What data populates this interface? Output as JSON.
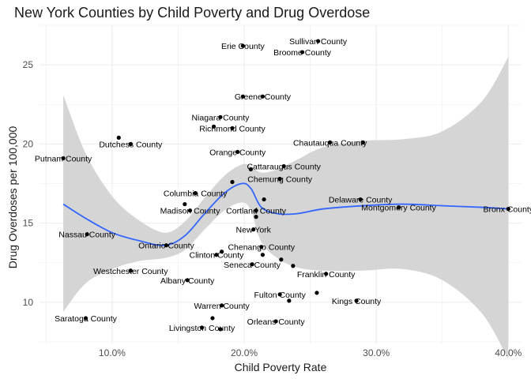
{
  "chart_data": {
    "type": "scatter",
    "title": "New York Counties by Child Poverty and Drug Overdose",
    "xlabel": "Child Poverty Rate",
    "ylabel": "Drug Overdoses per 100,000",
    "xlim": [
      0.045,
      0.41
    ],
    "ylim": [
      7.4,
      27.5
    ],
    "x_ticks": [
      0.1,
      0.2,
      0.3,
      0.4
    ],
    "x_tick_labels": [
      "10.0%",
      "20.0%",
      "30.0%",
      "40.0%"
    ],
    "y_ticks": [
      10,
      15,
      20,
      25
    ],
    "y_tick_labels": [
      "10",
      "15",
      "20",
      "25"
    ],
    "grid": true,
    "colors": {
      "point": "#000000",
      "smooth": "#3366ff",
      "ribbon": "#d3d3d3",
      "grid": "#ebebeb"
    },
    "points": [
      {
        "label": "Erie County",
        "x": 0.199,
        "y": 26.2
      },
      {
        "label": "Sullivan County",
        "x": 0.256,
        "y": 26.5
      },
      {
        "label": "Broome County",
        "x": 0.244,
        "y": 25.8
      },
      {
        "label": "Greene County",
        "x": 0.214,
        "y": 23.0
      },
      {
        "label": "",
        "x": 0.199,
        "y": 23.0
      },
      {
        "label": "Niagara County",
        "x": 0.182,
        "y": 21.7
      },
      {
        "label": "Richmond County",
        "x": 0.191,
        "y": 21.0
      },
      {
        "label": "",
        "x": 0.177,
        "y": 21.1
      },
      {
        "label": "Dutchess County",
        "x": 0.114,
        "y": 20.0
      },
      {
        "label": "",
        "x": 0.105,
        "y": 20.4
      },
      {
        "label": "Chautauqua County",
        "x": 0.265,
        "y": 20.1
      },
      {
        "label": "",
        "x": 0.29,
        "y": 20.1
      },
      {
        "label": "Putnam County",
        "x": 0.063,
        "y": 19.1
      },
      {
        "label": "Orange County",
        "x": 0.195,
        "y": 19.5
      },
      {
        "label": "Cattaraugus County",
        "x": 0.23,
        "y": 18.6
      },
      {
        "label": "",
        "x": 0.205,
        "y": 18.4
      },
      {
        "label": "Chemung County",
        "x": 0.227,
        "y": 17.8
      },
      {
        "label": "",
        "x": 0.191,
        "y": 17.6
      },
      {
        "label": "Columbia County",
        "x": 0.163,
        "y": 16.9
      },
      {
        "label": "",
        "x": 0.215,
        "y": 16.5
      },
      {
        "label": "Delaware County",
        "x": 0.288,
        "y": 16.5
      },
      {
        "label": "Montgomery County",
        "x": 0.317,
        "y": 16.0
      },
      {
        "label": "Bronx County",
        "x": 0.4,
        "y": 15.9
      },
      {
        "label": "Madison County",
        "x": 0.159,
        "y": 15.8
      },
      {
        "label": "",
        "x": 0.155,
        "y": 16.2
      },
      {
        "label": "Cortland County",
        "x": 0.209,
        "y": 15.8
      },
      {
        "label": "",
        "x": 0.209,
        "y": 15.4
      },
      {
        "label": "New York",
        "x": 0.207,
        "y": 14.6
      },
      {
        "label": "Nassau County",
        "x": 0.081,
        "y": 14.3
      },
      {
        "label": "Ontario County",
        "x": 0.141,
        "y": 13.6
      },
      {
        "label": "Chenango County",
        "x": 0.213,
        "y": 13.5
      },
      {
        "label": "Clinton County",
        "x": 0.179,
        "y": 13.0
      },
      {
        "label": "",
        "x": 0.183,
        "y": 13.2
      },
      {
        "label": "",
        "x": 0.214,
        "y": 13.0
      },
      {
        "label": "Seneca County",
        "x": 0.206,
        "y": 12.4
      },
      {
        "label": "",
        "x": 0.228,
        "y": 12.7
      },
      {
        "label": "",
        "x": 0.237,
        "y": 12.3
      },
      {
        "label": "Westchester County",
        "x": 0.114,
        "y": 12.0
      },
      {
        "label": "Franklin County",
        "x": 0.262,
        "y": 11.8
      },
      {
        "label": "Albany County",
        "x": 0.157,
        "y": 11.4
      },
      {
        "label": "Fulton County",
        "x": 0.227,
        "y": 10.5
      },
      {
        "label": "",
        "x": 0.255,
        "y": 10.6
      },
      {
        "label": "",
        "x": 0.234,
        "y": 10.1
      },
      {
        "label": "Kings County",
        "x": 0.285,
        "y": 10.1
      },
      {
        "label": "Warren County",
        "x": 0.183,
        "y": 9.8
      },
      {
        "label": "Saratoga County",
        "x": 0.08,
        "y": 9.0
      },
      {
        "label": "",
        "x": 0.176,
        "y": 9.0
      },
      {
        "label": "Orleans County",
        "x": 0.224,
        "y": 8.8
      },
      {
        "label": "Livingston County",
        "x": 0.168,
        "y": 8.4
      },
      {
        "label": "",
        "x": 0.182,
        "y": 8.3
      }
    ],
    "smooth": {
      "x": [
        0.063,
        0.08,
        0.1,
        0.12,
        0.14,
        0.155,
        0.17,
        0.185,
        0.198,
        0.205,
        0.213,
        0.225,
        0.24,
        0.26,
        0.29,
        0.32,
        0.35,
        0.38,
        0.4
      ],
      "y": [
        16.2,
        15.3,
        14.4,
        13.9,
        13.6,
        14.2,
        15.6,
        16.9,
        17.5,
        17.2,
        16.0,
        15.6,
        15.6,
        15.9,
        16.1,
        16.2,
        16.1,
        16.0,
        15.9
      ],
      "upper": [
        23.1,
        19.4,
        16.7,
        15.2,
        14.4,
        15.1,
        16.6,
        18.0,
        18.7,
        18.6,
        18.2,
        18.4,
        19.0,
        19.8,
        20.2,
        20.3,
        20.8,
        22.7,
        25.5
      ],
      "lower": [
        9.4,
        11.2,
        12.1,
        12.6,
        12.8,
        13.3,
        14.6,
        15.8,
        16.3,
        15.8,
        13.8,
        12.8,
        12.2,
        12.0,
        12.0,
        12.1,
        11.4,
        9.3,
        6.4
      ]
    }
  }
}
